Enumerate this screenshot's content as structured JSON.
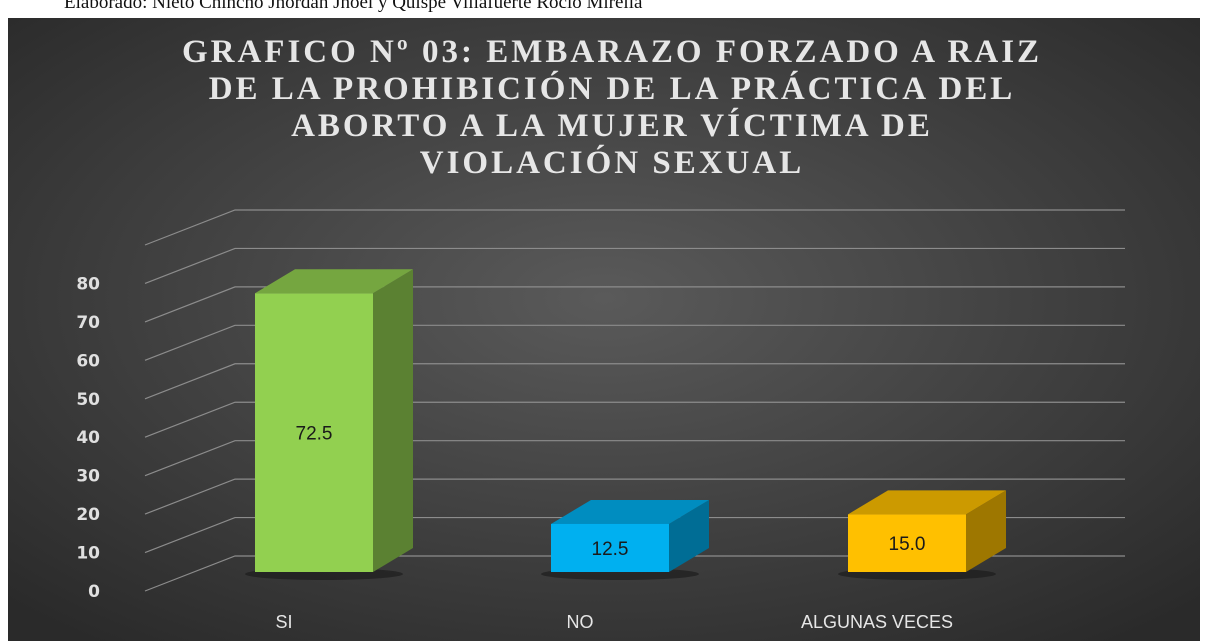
{
  "caption": "Elaborado: Nieto Chincho Jhordan Jhoel y Quispe Villafuerte Rocio Mirella",
  "chart_data": {
    "type": "bar3d",
    "title": [
      "GRAFICO Nº 03: EMBARAZO FORZADO A RAIZ",
      "DE LA PROHIBICIÓN DE LA PRÁCTICA DEL",
      "ABORTO A LA MUJER VÍCTIMA DE",
      "VIOLACIÓN SEXUAL"
    ],
    "categories": [
      "SI",
      "NO",
      "ALGUNAS VECES"
    ],
    "values": [
      72.5,
      12.5,
      15
    ],
    "value_labels": [
      "72.5",
      "12.5",
      "15.0"
    ],
    "colors": [
      "#92d050",
      "#00b0f0",
      "#ffc000"
    ],
    "ylim": [
      0,
      90
    ],
    "yticks": [
      0,
      10,
      20,
      30,
      40,
      50,
      60,
      70,
      80
    ],
    "grid": true
  }
}
